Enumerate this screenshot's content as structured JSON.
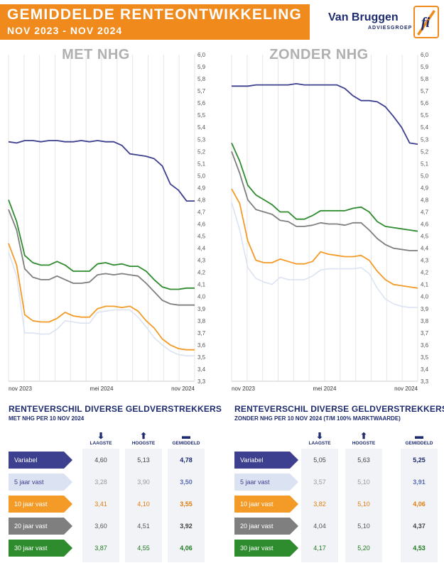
{
  "header": {
    "title": "GEMIDDELDE RENTEONTWIKKELING",
    "subtitle": "NOV 2023 - NOV 2024",
    "brand_name": "Van Bruggen",
    "brand_sub": "ADVIESGROEP",
    "logo_text": "fi"
  },
  "colors": {
    "variabel": "#3d3f8f",
    "vijf": "#dbe3f2",
    "tien": "#f39a27",
    "twintig": "#7f7f7f",
    "dertig": "#2e8b2e",
    "accent": "#f08a1c",
    "navy": "#1e2b6f"
  },
  "chart_data": [
    {
      "type": "line",
      "title": "MET NHG",
      "ylim": [
        3.3,
        6.0
      ],
      "y_ticks": [
        "6,0",
        "5,9",
        "5,8",
        "5,7",
        "5,6",
        "5,5",
        "5,4",
        "5,3",
        "5,2",
        "5,1",
        "5,0",
        "4,9",
        "4,8",
        "4,7",
        "4,6",
        "4,5",
        "4,4",
        "4,3",
        "4,2",
        "4,1",
        "4,0",
        "3,9",
        "3,8",
        "3,7",
        "3,6",
        "3,5",
        "3,4",
        "3,3"
      ],
      "x_ticks": [
        "nov 2023",
        "mei 2024",
        "nov 2024"
      ],
      "grid": "vertical",
      "series": [
        {
          "key": "variabel",
          "values": [
            5.28,
            5.27,
            5.29,
            5.29,
            5.28,
            5.29,
            5.29,
            5.28,
            5.28,
            5.29,
            5.28,
            5.29,
            5.28,
            5.28,
            5.25,
            5.18,
            5.17,
            5.16,
            5.14,
            5.08,
            4.93,
            4.88,
            4.79,
            4.79
          ]
        },
        {
          "key": "dertig",
          "values": [
            4.8,
            4.62,
            4.34,
            4.28,
            4.26,
            4.26,
            4.29,
            4.26,
            4.21,
            4.21,
            4.21,
            4.27,
            4.28,
            4.26,
            4.27,
            4.25,
            4.25,
            4.21,
            4.14,
            4.08,
            4.06,
            4.06,
            4.07,
            4.07
          ]
        },
        {
          "key": "twintig",
          "values": [
            4.72,
            4.55,
            4.23,
            4.16,
            4.14,
            4.14,
            4.17,
            4.14,
            4.11,
            4.11,
            4.12,
            4.18,
            4.19,
            4.18,
            4.19,
            4.18,
            4.17,
            4.11,
            4.04,
            3.97,
            3.94,
            3.93,
            3.93,
            3.93
          ]
        },
        {
          "key": "tien",
          "values": [
            4.44,
            4.26,
            3.85,
            3.8,
            3.79,
            3.79,
            3.82,
            3.87,
            3.84,
            3.83,
            3.83,
            3.9,
            3.92,
            3.92,
            3.91,
            3.92,
            3.88,
            3.8,
            3.74,
            3.65,
            3.6,
            3.57,
            3.56,
            3.56
          ]
        },
        {
          "key": "vijf",
          "values": [
            4.37,
            4.17,
            3.7,
            3.7,
            3.69,
            3.69,
            3.73,
            3.8,
            3.79,
            3.78,
            3.78,
            3.87,
            3.88,
            3.89,
            3.89,
            3.89,
            3.83,
            3.75,
            3.66,
            3.6,
            3.55,
            3.52,
            3.51,
            3.51
          ]
        }
      ]
    },
    {
      "type": "line",
      "title": "ZONDER NHG",
      "ylim": [
        3.3,
        6.0
      ],
      "y_ticks": [
        "6,0",
        "5,9",
        "5,8",
        "5,7",
        "5,6",
        "5,5",
        "5,4",
        "5,3",
        "5,2",
        "5,1",
        "5,0",
        "4,9",
        "4,8",
        "4,7",
        "4,6",
        "4,5",
        "4,4",
        "4,3",
        "4,2",
        "4,1",
        "4,0",
        "3,9",
        "3,8",
        "3,7",
        "3,6",
        "3,5",
        "3,4",
        "3,3"
      ],
      "x_ticks": [
        "nov 2023",
        "mei 2024",
        "nov 2024"
      ],
      "grid": "vertical",
      "series": [
        {
          "key": "variabel",
          "values": [
            5.74,
            5.74,
            5.74,
            5.75,
            5.75,
            5.75,
            5.75,
            5.75,
            5.76,
            5.75,
            5.75,
            5.75,
            5.75,
            5.75,
            5.72,
            5.66,
            5.62,
            5.62,
            5.61,
            5.57,
            5.49,
            5.4,
            5.27,
            5.26
          ]
        },
        {
          "key": "dertig",
          "values": [
            5.27,
            5.12,
            4.92,
            4.84,
            4.8,
            4.76,
            4.7,
            4.7,
            4.64,
            4.64,
            4.67,
            4.71,
            4.71,
            4.71,
            4.71,
            4.73,
            4.74,
            4.7,
            4.62,
            4.58,
            4.57,
            4.56,
            4.55,
            4.54
          ]
        },
        {
          "key": "twintig",
          "values": [
            5.2,
            5.02,
            4.8,
            4.72,
            4.7,
            4.68,
            4.63,
            4.62,
            4.58,
            4.58,
            4.59,
            4.61,
            4.6,
            4.6,
            4.59,
            4.61,
            4.61,
            4.55,
            4.48,
            4.43,
            4.4,
            4.39,
            4.38,
            4.38
          ]
        },
        {
          "key": "tien",
          "values": [
            4.89,
            4.77,
            4.46,
            4.3,
            4.28,
            4.28,
            4.31,
            4.29,
            4.27,
            4.27,
            4.29,
            4.37,
            4.35,
            4.34,
            4.33,
            4.33,
            4.34,
            4.3,
            4.21,
            4.14,
            4.1,
            4.09,
            4.08,
            4.07
          ]
        },
        {
          "key": "vijf",
          "values": [
            4.78,
            4.55,
            4.24,
            4.15,
            4.12,
            4.1,
            4.16,
            4.14,
            4.14,
            4.14,
            4.17,
            4.22,
            4.23,
            4.23,
            4.23,
            4.23,
            4.24,
            4.19,
            4.07,
            3.98,
            3.94,
            3.92,
            3.91,
            3.91
          ]
        }
      ]
    }
  ],
  "left_panel": {
    "title": "RENTEVERSCHIL DIVERSE GELDVERSTREKKERS",
    "subtitle": "MET NHG PER 10 NOV 2024",
    "col_low": "LAAGSTE",
    "col_high": "HOOGSTE",
    "col_avg": "GEMIDDELD",
    "rows": [
      {
        "label": "Variabel",
        "low": "4,60",
        "high": "5,13",
        "avg": "4,78"
      },
      {
        "label": "5 jaar vast",
        "low": "3,28",
        "high": "3,90",
        "avg": "3,50"
      },
      {
        "label": "10 jaar vast",
        "low": "3,41",
        "high": "4,10",
        "avg": "3,55"
      },
      {
        "label": "20 jaar vast",
        "low": "3,60",
        "high": "4,51",
        "avg": "3,92"
      },
      {
        "label": "30 jaar vast",
        "low": "3,87",
        "high": "4,55",
        "avg": "4,06"
      }
    ]
  },
  "right_panel": {
    "title": "RENTEVERSCHIL DIVERSE GELDVERSTREKKERS",
    "subtitle": "ZONDER NHG PER 10 NOV 2024 (T/M 100% MARKTWAARDE)",
    "col_low": "LAAGSTE",
    "col_high": "HOOGSTE",
    "col_avg": "GEMIDDELD",
    "rows": [
      {
        "label": "Variabel",
        "low": "5,05",
        "high": "5,63",
        "avg": "5,25"
      },
      {
        "label": "5 jaar vast",
        "low": "3,57",
        "high": "5,10",
        "avg": "3,91"
      },
      {
        "label": "10 jaar vast",
        "low": "3,82",
        "high": "5,10",
        "avg": "4,06"
      },
      {
        "label": "20 jaar vast",
        "low": "4,04",
        "high": "5,10",
        "avg": "4,37"
      },
      {
        "label": "30 jaar vast",
        "low": "4,17",
        "high": "5,20",
        "avg": "4,53"
      }
    ]
  }
}
